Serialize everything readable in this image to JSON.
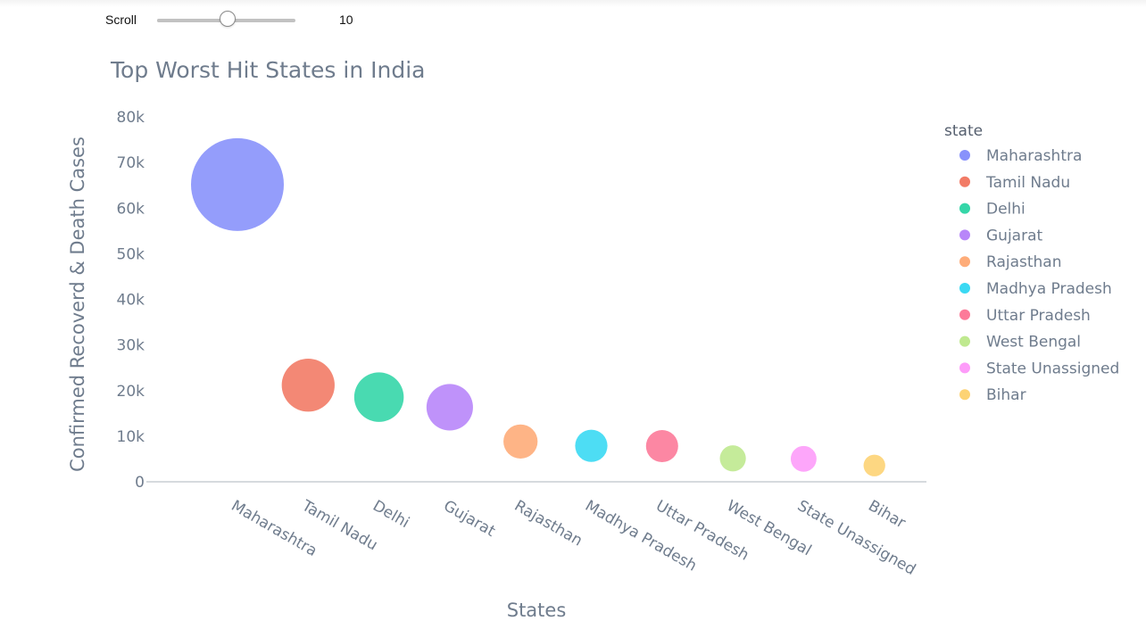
{
  "slider": {
    "label": "Scroll",
    "value": "10",
    "fraction": 0.51
  },
  "chart_data": {
    "type": "scatter",
    "title": "Top Worst Hit States in India",
    "xlabel": "States",
    "ylabel": "Confirmed Recoverd & Death Cases",
    "ylim": [
      0,
      80000
    ],
    "yticks": [
      0,
      10000,
      20000,
      30000,
      40000,
      50000,
      60000,
      70000,
      80000
    ],
    "ytick_labels": [
      "0",
      "10k",
      "20k",
      "30k",
      "40k",
      "50k",
      "60k",
      "70k",
      "80k"
    ],
    "categories": [
      "Maharashtra",
      "Tamil Nadu",
      "Delhi",
      "Gujarat",
      "Rajasthan",
      "Madhya Pradesh",
      "Uttar Pradesh",
      "West Bengal",
      "State Unassigned",
      "Bihar"
    ],
    "values": [
      65168,
      21184,
      18549,
      16343,
      8831,
      7891,
      7823,
      5130,
      5030,
      3565
    ],
    "colors": [
      "#8892fb",
      "#f27b66",
      "#35d6a8",
      "#b886f9",
      "#feac79",
      "#3ad9f3",
      "#fc7a99",
      "#bfe98f",
      "#fd9cf9",
      "#fdd374"
    ],
    "legend_title": "state",
    "legend_position": "right",
    "grid": false,
    "bubble_size_encodes": "value"
  }
}
